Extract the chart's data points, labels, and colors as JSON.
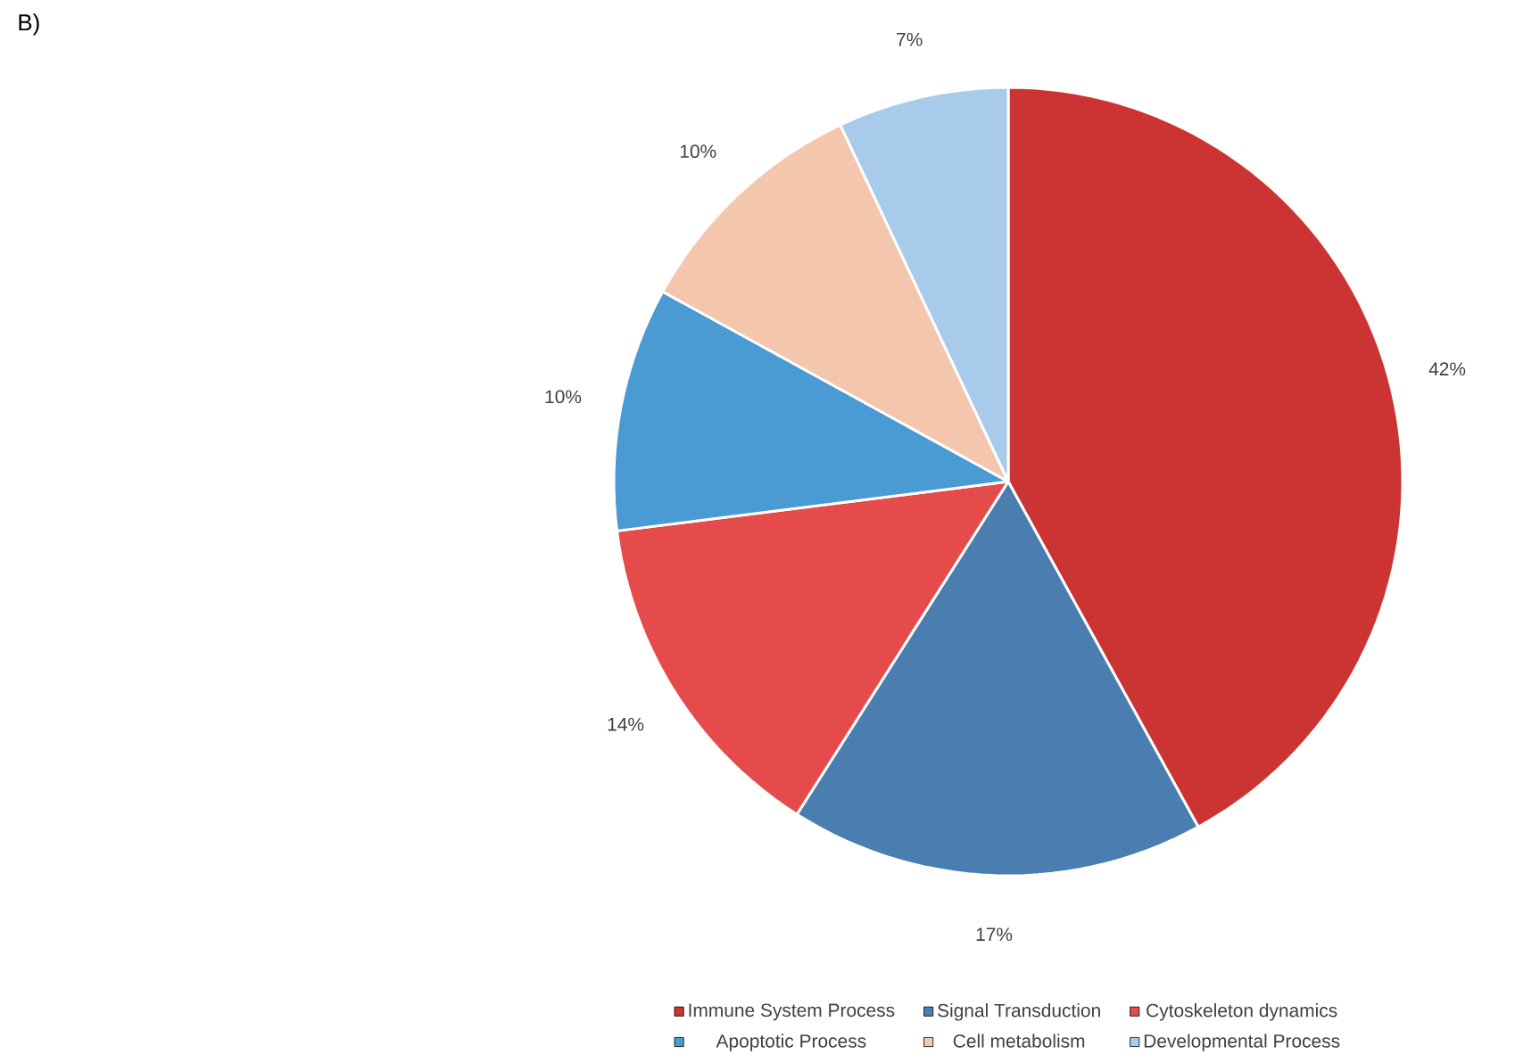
{
  "chart_data": {
    "type": "pie",
    "annotations": [
      "B)"
    ],
    "categories": [
      "Immune System Process",
      "Signal Transduction",
      "Cytoskeleton dynamics",
      "Apoptotic Process",
      "Cell metabolism",
      "Developmental Process"
    ],
    "values": [
      42,
      17,
      14,
      10,
      10,
      7
    ],
    "value_labels": [
      "42%",
      "17%",
      "14%",
      "10%",
      "10%",
      "7%"
    ],
    "colors": [
      "#cc3333",
      "#4a7eb0",
      "#e54b4b",
      "#4a9ad4",
      "#f5c6ae",
      "#a8caeb"
    ],
    "legend": "bottom"
  }
}
